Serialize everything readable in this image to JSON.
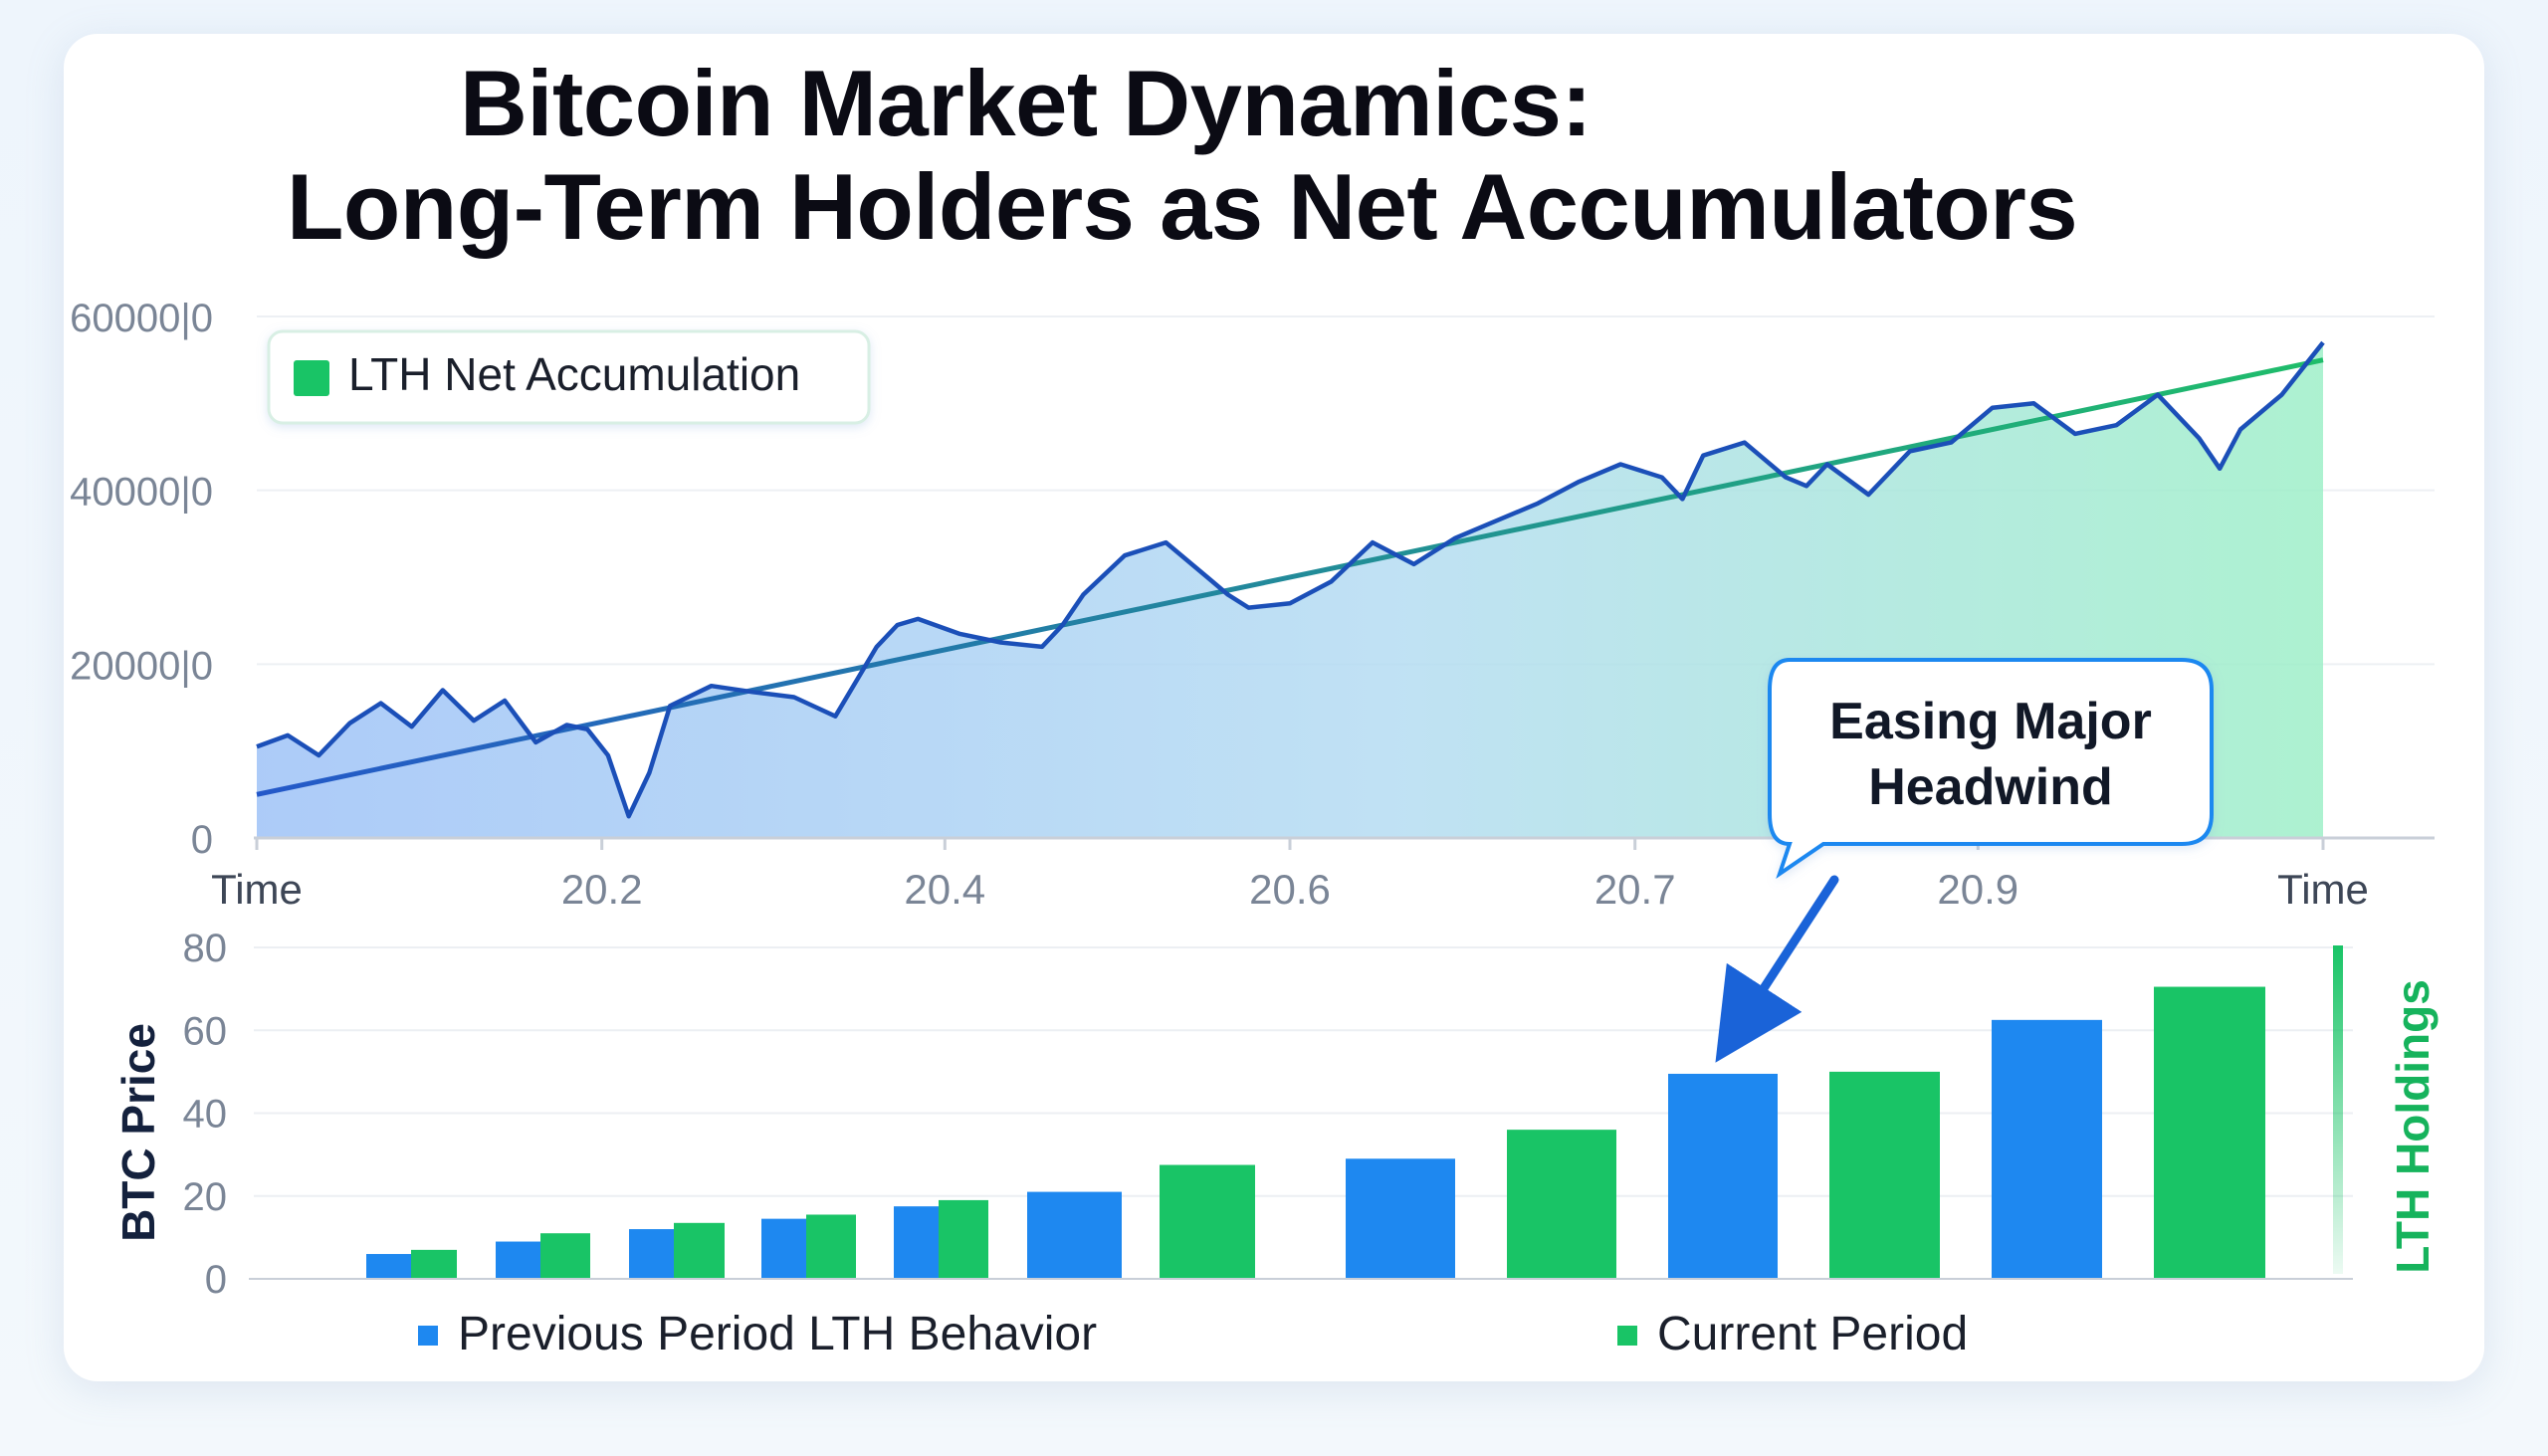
{
  "title": {
    "line1": "Bitcoin Market Dynamics:",
    "line2": "Long-Term Holders as Net Accumulators"
  },
  "colors": {
    "blue": "#1e88f0",
    "green": "#19c466",
    "line_blue": "#1b4fb8",
    "trend_green": "#1fbd6a",
    "axis_text": "#7a8596"
  },
  "chart_data": [
    {
      "type": "line",
      "title": "",
      "legend": {
        "label": "LTH Net Accumulation",
        "position": "top-left"
      },
      "y_tick_labels": [
        "0",
        "20000|0",
        "40000|0",
        "60000|0"
      ],
      "y_tick_values": [
        0,
        20000,
        40000,
        60000
      ],
      "ylim": [
        0,
        60000
      ],
      "x_tick_labels": [
        "Time",
        "20.2",
        "20.4",
        "20.6",
        "20.7",
        "20.9",
        "Time"
      ],
      "x_tick_values": [
        0,
        0.167,
        0.333,
        0.5,
        0.667,
        0.833,
        1.0
      ],
      "xlim": [
        0,
        1
      ],
      "series": [
        {
          "name": "BTC Price",
          "x": [
            0.0,
            0.015,
            0.03,
            0.045,
            0.06,
            0.075,
            0.09,
            0.105,
            0.12,
            0.135,
            0.15,
            0.16,
            0.17,
            0.18,
            0.19,
            0.2,
            0.22,
            0.24,
            0.26,
            0.28,
            0.3,
            0.31,
            0.32,
            0.34,
            0.36,
            0.38,
            0.39,
            0.4,
            0.42,
            0.44,
            0.46,
            0.47,
            0.48,
            0.5,
            0.52,
            0.54,
            0.56,
            0.58,
            0.6,
            0.62,
            0.64,
            0.66,
            0.68,
            0.69,
            0.7,
            0.72,
            0.74,
            0.75,
            0.76,
            0.78,
            0.8,
            0.82,
            0.84,
            0.86,
            0.88,
            0.9,
            0.92,
            0.94,
            0.95,
            0.96,
            0.98,
            1.0
          ],
          "values": [
            10500,
            11800,
            9500,
            13200,
            15500,
            12800,
            17000,
            13500,
            15800,
            11000,
            13000,
            12500,
            9500,
            2500,
            7500,
            15200,
            17500,
            16800,
            16200,
            14000,
            22000,
            24500,
            25200,
            23500,
            22500,
            22000,
            24500,
            28000,
            32500,
            34000,
            30000,
            28000,
            26500,
            27000,
            29500,
            34000,
            31500,
            34500,
            36500,
            38500,
            41000,
            43000,
            41500,
            39000,
            44000,
            45500,
            41500,
            40500,
            43000,
            39500,
            44500,
            45500,
            49500,
            50000,
            46500,
            47500,
            51000,
            46000,
            42500,
            47000,
            51000,
            57000
          ]
        },
        {
          "name": "LTH Net Accumulation",
          "x": [
            0.0,
            1.0
          ],
          "values": [
            5000,
            55000
          ]
        }
      ]
    },
    {
      "type": "bar",
      "ylabel": "BTC Price",
      "y2label": "LTH Holdings",
      "y_tick_labels": [
        "0",
        "20",
        "40",
        "60",
        "80"
      ],
      "y_tick_values": [
        0,
        20,
        40,
        60,
        80
      ],
      "ylim": [
        0,
        80
      ],
      "annotation": {
        "line1": "Easing Major",
        "line2": "Headwind"
      },
      "legend": [
        {
          "label": "Previous Period LTH Behavior",
          "color": "#1e88f0"
        },
        {
          "label": "Current Period",
          "color": "#19c466"
        }
      ],
      "groups": [
        {
          "previous": 6,
          "current": 7
        },
        {
          "previous": 9,
          "current": 11
        },
        {
          "previous": 12,
          "current": 13.5
        },
        {
          "previous": 14.5,
          "current": 15.5
        },
        {
          "previous": 17.5,
          "current": 19
        },
        {
          "previous": 21,
          "current": null
        },
        {
          "previous": null,
          "current": 27.5
        },
        {
          "previous": 29,
          "current": null
        },
        {
          "previous": null,
          "current": 36
        },
        {
          "previous": 49.5,
          "current": null
        },
        {
          "previous": null,
          "current": 50
        },
        {
          "previous": 62.5,
          "current": null
        },
        {
          "previous": null,
          "current": 70.5
        }
      ]
    }
  ]
}
